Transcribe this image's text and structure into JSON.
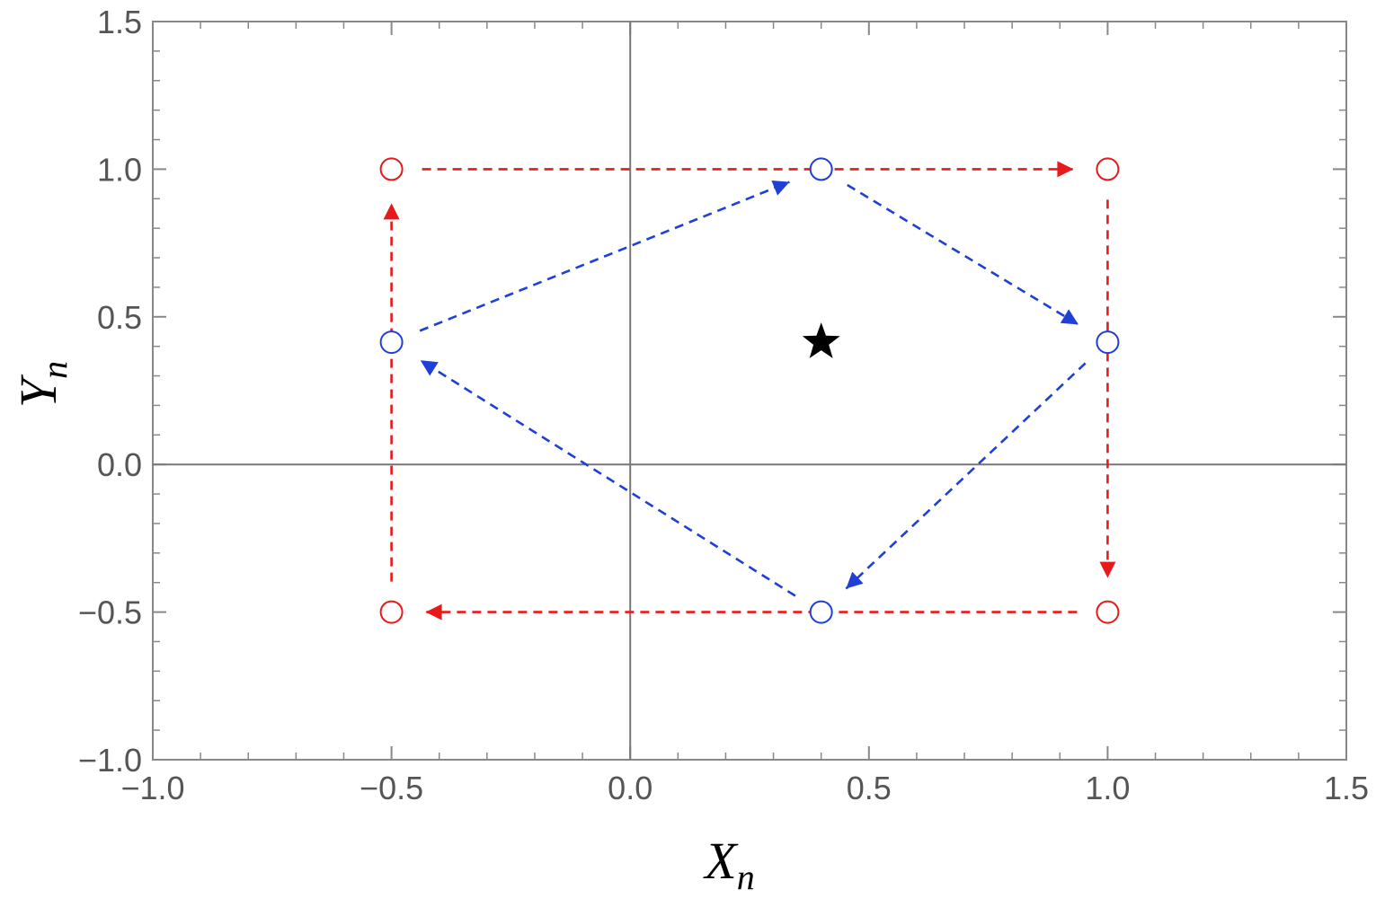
{
  "chart_data": {
    "type": "scatter",
    "xlabel": {
      "main": "X",
      "sub": "n"
    },
    "ylabel": {
      "main": "Y",
      "sub": "n"
    },
    "xlim": [
      -1.0,
      1.5
    ],
    "ylim": [
      -1.0,
      1.5
    ],
    "x_ticks": [
      "−1.0",
      "−0.5",
      "0.0",
      "0.5",
      "1.0",
      "1.5"
    ],
    "y_ticks": [
      "−1.0",
      "−0.5",
      "0.0",
      "0.5",
      "1.0",
      "1.5"
    ],
    "x_tick_values": [
      -1.0,
      -0.5,
      0.0,
      0.5,
      1.0,
      1.5
    ],
    "y_tick_values": [
      -1.0,
      -0.5,
      0.0,
      0.5,
      1.0,
      1.5
    ],
    "minor_step": 0.1,
    "grid": false,
    "frame": true,
    "series": [
      {
        "color": "#e8191a",
        "marker": "open-circle",
        "line": "dashed-arrows",
        "points": [
          {
            "x": -0.5,
            "y": -0.5
          },
          {
            "x": -0.5,
            "y": 1.0
          },
          {
            "x": 1.0,
            "y": 1.0
          },
          {
            "x": 1.0,
            "y": -0.5
          }
        ]
      },
      {
        "color": "#1f3fd6",
        "marker": "open-circle",
        "line": "dashed-arrows",
        "points": [
          {
            "x": -0.5,
            "y": 0.414
          },
          {
            "x": 0.4,
            "y": 1.0
          },
          {
            "x": 1.0,
            "y": 0.414
          },
          {
            "x": 0.4,
            "y": -0.5
          }
        ]
      }
    ],
    "special_point": {
      "x": 0.4,
      "y": 0.414,
      "marker": "star",
      "color": "#000000"
    }
  }
}
